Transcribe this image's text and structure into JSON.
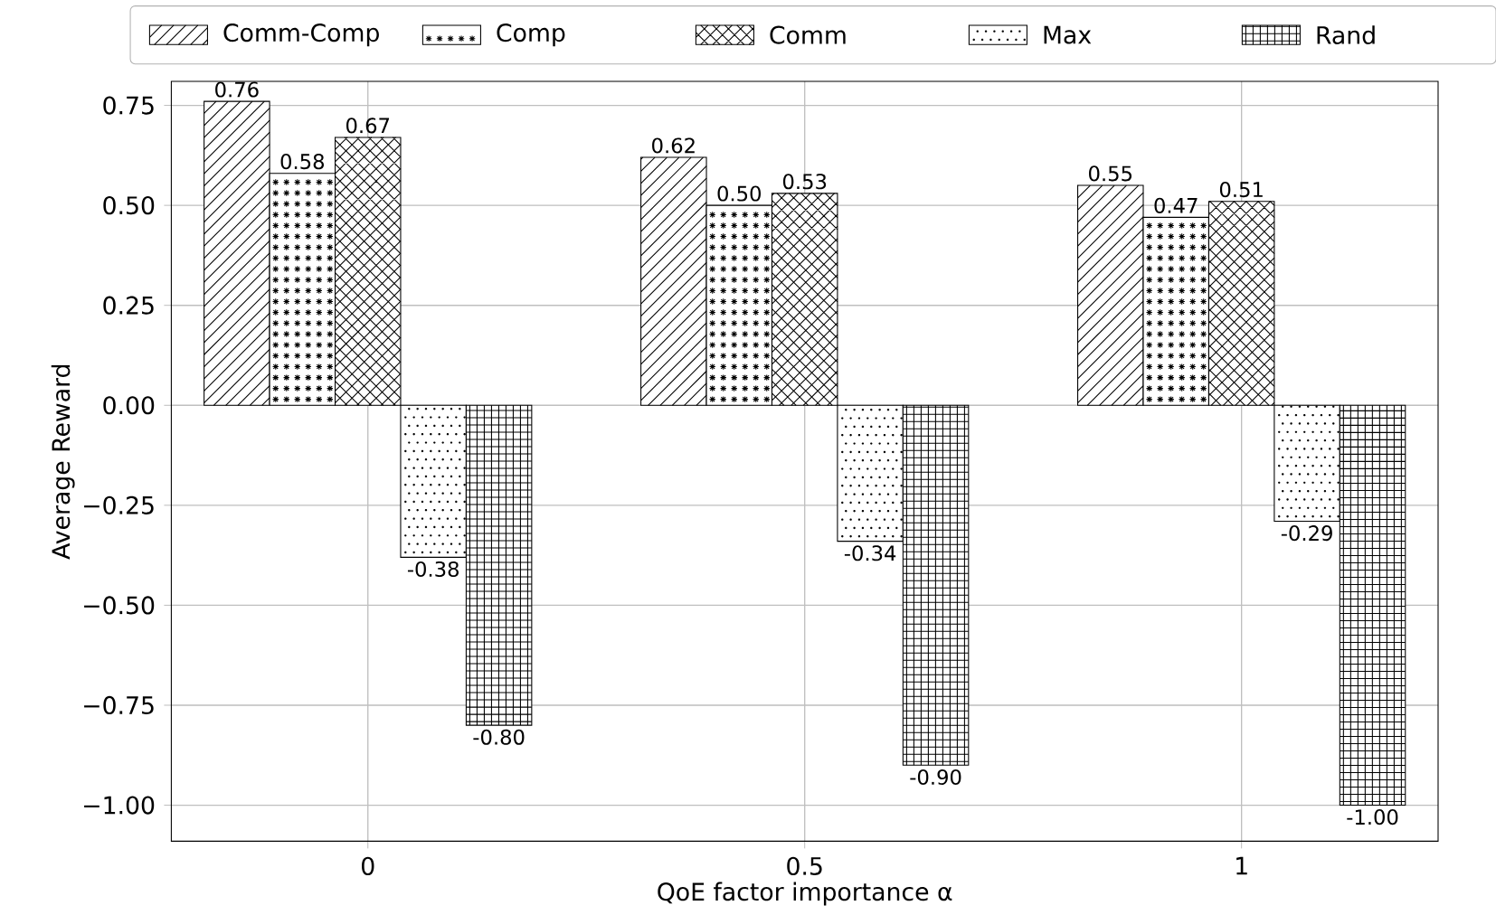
{
  "chart_data": {
    "type": "bar",
    "xlabel": "QoE factor importance α",
    "ylabel": "Average Reward",
    "categories": [
      "0",
      "0.5",
      "1"
    ],
    "series": [
      {
        "name": "Comm-Comp",
        "color": "#000000",
        "values": [
          0.76,
          0.62,
          0.55
        ],
        "value_labels": [
          "0.76",
          "0.62",
          "0.55"
        ]
      },
      {
        "name": "Comp",
        "color": "#000000",
        "values": [
          0.58,
          0.5,
          0.47
        ],
        "value_labels": [
          "0.58",
          "0.50",
          "0.47"
        ]
      },
      {
        "name": "Comm",
        "color": "#000000",
        "values": [
          0.67,
          0.53,
          0.51
        ],
        "value_labels": [
          "0.67",
          "0.53",
          "0.51"
        ]
      },
      {
        "name": "Max",
        "color": "#000000",
        "values": [
          -0.38,
          -0.34,
          -0.29
        ],
        "value_labels": [
          "-0.38",
          "-0.34",
          "-0.29"
        ]
      },
      {
        "name": "Rand",
        "color": "#000000",
        "values": [
          -0.8,
          -0.9,
          -1.0
        ],
        "value_labels": [
          "-0.80",
          "-0.90",
          "-1.00"
        ]
      }
    ],
    "ylim": [
      -1.09,
      0.81
    ],
    "yticks": [
      {
        "value": -1.0,
        "label": "−1.00"
      },
      {
        "value": -0.75,
        "label": "−0.75"
      },
      {
        "value": -0.5,
        "label": "−0.50"
      },
      {
        "value": -0.25,
        "label": "−0.25"
      },
      {
        "value": 0.0,
        "label": "0.00"
      },
      {
        "value": 0.25,
        "label": "0.25"
      },
      {
        "value": 0.5,
        "label": "0.50"
      },
      {
        "value": 0.75,
        "label": "0.75"
      }
    ],
    "grid": true,
    "legend": "top"
  }
}
